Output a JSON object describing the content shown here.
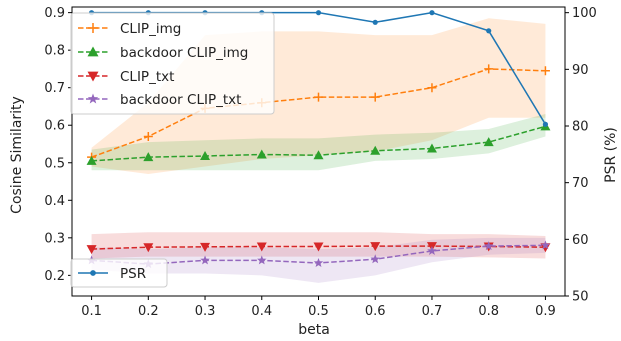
{
  "chart_data": {
    "type": "line",
    "xlabel": "beta",
    "ylabel_left": "Cosine Similarity",
    "ylabel_right": "PSR (%)",
    "x": [
      0.1,
      0.2,
      0.3,
      0.4,
      0.5,
      0.6,
      0.7,
      0.8,
      0.9
    ],
    "x_tick_labels": [
      "0.1",
      "0.2",
      "0.3",
      "0.4",
      "0.5",
      "0.6",
      "0.7",
      "0.8",
      "0.9"
    ],
    "ylim_left": [
      0.145,
      0.915
    ],
    "yticks_left": [
      "0.2",
      "0.3",
      "0.4",
      "0.5",
      "0.6",
      "0.7",
      "0.8",
      "0.9"
    ],
    "ylim_right": [
      50,
      101
    ],
    "yticks_right": [
      "50",
      "60",
      "70",
      "80",
      "90",
      "100"
    ],
    "grid": false,
    "legend_top_left": [
      "CLIP_img",
      "backdoor CLIP_img",
      "CLIP_txt",
      "backdoor CLIP_txt"
    ],
    "legend_bottom_left": [
      "PSR"
    ],
    "series": [
      {
        "name": "CLIP_img",
        "axis": "left",
        "color": "#ff7f0e",
        "linestyle": "dashed",
        "marker": "plus",
        "values": [
          0.515,
          0.57,
          0.645,
          0.66,
          0.675,
          0.675,
          0.7,
          0.75,
          0.745
        ],
        "band_lower": [
          0.49,
          0.47,
          0.49,
          0.51,
          0.52,
          0.53,
          0.56,
          0.62,
          0.62
        ],
        "band_upper": [
          0.54,
          0.66,
          0.84,
          0.85,
          0.85,
          0.84,
          0.84,
          0.885,
          0.87
        ]
      },
      {
        "name": "backdoor CLIP_img",
        "axis": "left",
        "color": "#2ca02c",
        "linestyle": "dashed",
        "marker": "triangle-up",
        "values": [
          0.505,
          0.515,
          0.518,
          0.522,
          0.52,
          0.532,
          0.538,
          0.555,
          0.597
        ],
        "band_lower": [
          0.48,
          0.48,
          0.48,
          0.48,
          0.48,
          0.505,
          0.51,
          0.525,
          0.57
        ],
        "band_upper": [
          0.535,
          0.555,
          0.56,
          0.565,
          0.565,
          0.575,
          0.58,
          0.59,
          0.63
        ]
      },
      {
        "name": "CLIP_txt",
        "axis": "left",
        "color": "#d62728",
        "linestyle": "dashed",
        "marker": "triangle-down",
        "values": [
          0.27,
          0.275,
          0.276,
          0.277,
          0.277,
          0.278,
          0.278,
          0.277,
          0.275
        ],
        "band_lower": [
          0.245,
          0.25,
          0.25,
          0.25,
          0.25,
          0.25,
          0.25,
          0.248,
          0.245
        ],
        "band_upper": [
          0.31,
          0.315,
          0.315,
          0.315,
          0.315,
          0.315,
          0.31,
          0.31,
          0.305
        ]
      },
      {
        "name": "backdoor CLIP_txt",
        "axis": "left",
        "color": "#9467bd",
        "linestyle": "dashed",
        "marker": "star",
        "values": [
          0.24,
          0.23,
          0.24,
          0.24,
          0.233,
          0.243,
          0.265,
          0.278,
          0.28
        ],
        "band_lower": [
          0.215,
          0.205,
          0.205,
          0.2,
          0.18,
          0.2,
          0.235,
          0.255,
          0.26
        ],
        "band_upper": [
          0.275,
          0.27,
          0.275,
          0.275,
          0.27,
          0.275,
          0.295,
          0.3,
          0.3
        ]
      },
      {
        "name": "PSR",
        "axis": "right",
        "color": "#1f77b4",
        "linestyle": "solid",
        "marker": "circle",
        "values": [
          100,
          100,
          100,
          100,
          100,
          98.3,
          100,
          96.8,
          80.3
        ]
      }
    ]
  }
}
